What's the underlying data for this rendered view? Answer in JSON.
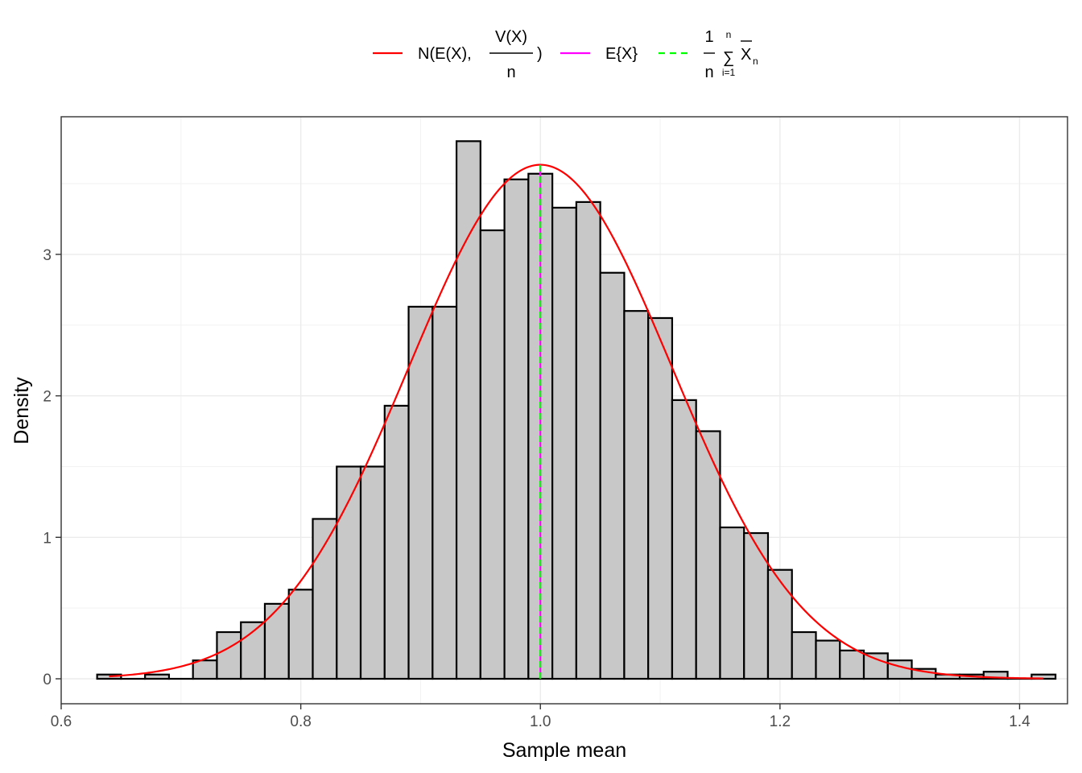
{
  "chart_data": {
    "type": "bar",
    "xlabel": "Sample mean",
    "ylabel": "Density",
    "xlim": [
      0.6,
      1.44
    ],
    "ylim": [
      0,
      3.8
    ],
    "x_ticks": [
      "0.6",
      "0.8",
      "1.0",
      "1.2",
      "1.4"
    ],
    "y_ticks": [
      "0",
      "1",
      "2",
      "3"
    ],
    "grid": true,
    "bin_width": 0.02,
    "bins_start": [
      0.63,
      0.65,
      0.67,
      0.69,
      0.71,
      0.73,
      0.75,
      0.77,
      0.79,
      0.81,
      0.83,
      0.85,
      0.87,
      0.89,
      0.91,
      0.93,
      0.95,
      0.97,
      0.99,
      1.01,
      1.03,
      1.05,
      1.07,
      1.09,
      1.11,
      1.13,
      1.15,
      1.17,
      1.19,
      1.21,
      1.23,
      1.25,
      1.27,
      1.29,
      1.31,
      1.33,
      1.35,
      1.37,
      1.39,
      1.41
    ],
    "density": [
      0.03,
      0.0,
      0.03,
      0.0,
      0.13,
      0.33,
      0.4,
      0.53,
      0.63,
      1.13,
      1.5,
      1.5,
      1.93,
      2.63,
      2.63,
      3.8,
      3.17,
      3.53,
      3.57,
      3.33,
      3.37,
      2.87,
      2.6,
      2.55,
      1.97,
      1.75,
      1.07,
      1.03,
      0.77,
      0.33,
      0.27,
      0.2,
      0.18,
      0.13,
      0.07,
      0.03,
      0.03,
      0.05,
      0.0,
      0.03
    ],
    "bar_color": "#c8c8c8",
    "bar_outline": "#000000",
    "normal_curve": {
      "mean": 1.0,
      "sd": 0.1098,
      "color": "#ff0000",
      "x_range": [
        0.64,
        1.42
      ]
    },
    "expected_value_line": {
      "x": 1.0,
      "color": "#ff00ff"
    },
    "sample_mean_line": {
      "x": 1.0,
      "color": "#00ff00",
      "style": "dashed"
    },
    "legend": {
      "position": "top",
      "items": [
        {
          "color": "#ff0000",
          "style": "solid",
          "text_main": "N(E(X),",
          "frac_num": "V(X)",
          "frac_den": "n",
          "text_end": ")"
        },
        {
          "color": "#ff00ff",
          "style": "solid",
          "text_main": "E{X}"
        },
        {
          "color": "#00ff00",
          "style": "dashed",
          "frac_num": "1",
          "frac_den": "n",
          "sum_top": "n",
          "sum_bottom": "i=1",
          "sum_symbol": "∑",
          "term": "X",
          "term_sub": "n"
        }
      ]
    }
  }
}
